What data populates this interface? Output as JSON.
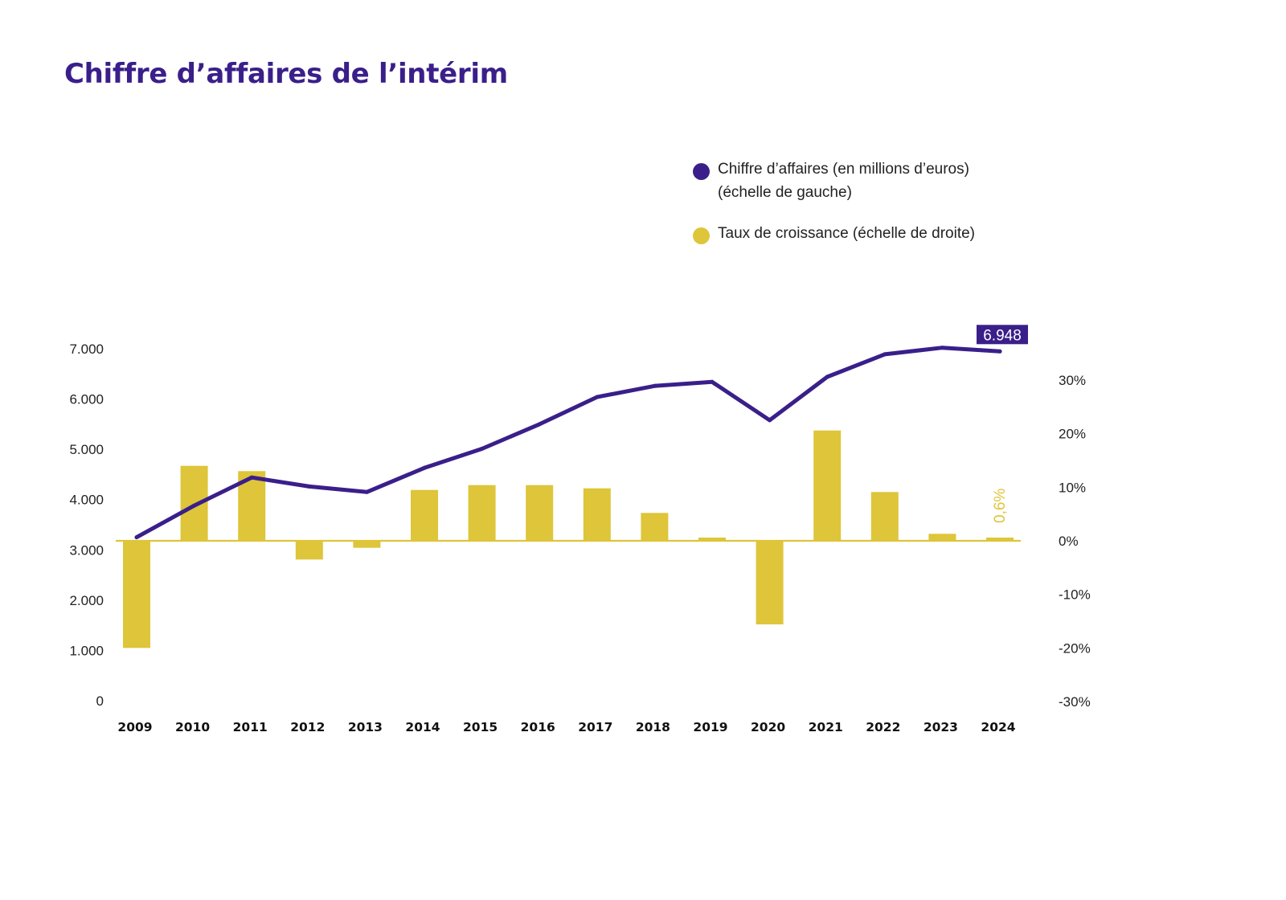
{
  "colors": {
    "title": "#3a1f8a",
    "line": "#3a1f8a",
    "bars": "#dec53a",
    "baseline": "#dec53a",
    "text": "#222222"
  },
  "legend": {
    "items": [
      {
        "lines": [
          "Chiffre d’affaires (en millions d’euros)",
          "(échelle de gauche)"
        ],
        "color": "#3a1f8a"
      },
      {
        "lines": [
          "Taux de croissance (échelle de droite)"
        ],
        "color": "#dec53a"
      }
    ]
  },
  "chart_data": {
    "type": "bar+line",
    "title": "Chiffre d’affaires de l’intérim",
    "categories": [
      "2009",
      "2010",
      "2011",
      "2012",
      "2013",
      "2014",
      "2015",
      "2016",
      "2017",
      "2018",
      "2019",
      "2020",
      "2021",
      "2022",
      "2023",
      "2024"
    ],
    "series": [
      {
        "name": "Chiffre d’affaires (en millions d’euros) (échelle de gauche)",
        "type": "line",
        "axis": "left",
        "values": [
          3250,
          3880,
          4440,
          4260,
          4150,
          4630,
          5010,
          5500,
          6040,
          6260,
          6340,
          5580,
          6440,
          6890,
          7020,
          6948
        ]
      },
      {
        "name": "Taux de croissance (échelle de droite)",
        "type": "bar",
        "axis": "right",
        "values": [
          -20,
          14,
          13,
          -3.5,
          -1.3,
          9.5,
          10.4,
          10.4,
          9.8,
          5.2,
          0.6,
          -15.6,
          20.6,
          9.1,
          1.3,
          0.6
        ]
      }
    ],
    "left_axis": {
      "ylim": [
        0,
        7000
      ],
      "ticks": [
        0,
        1000,
        2000,
        3000,
        4000,
        5000,
        6000,
        7000
      ],
      "tick_labels": [
        "0",
        "1.000",
        "2.000",
        "3.000",
        "4.000",
        "5.000",
        "6.000",
        "7.000"
      ]
    },
    "right_axis": {
      "ylim": [
        -30,
        30
      ],
      "ticks": [
        -30,
        -20,
        -10,
        0,
        10,
        20,
        30
      ],
      "tick_labels": [
        "-30%",
        "-20%",
        "-10%",
        "0%",
        "10%",
        "20%",
        "30%"
      ]
    },
    "annotations": {
      "last_value_label": "6.948",
      "last_growth_label": "0,6%"
    },
    "grid": false,
    "legend_position": "top-right"
  }
}
